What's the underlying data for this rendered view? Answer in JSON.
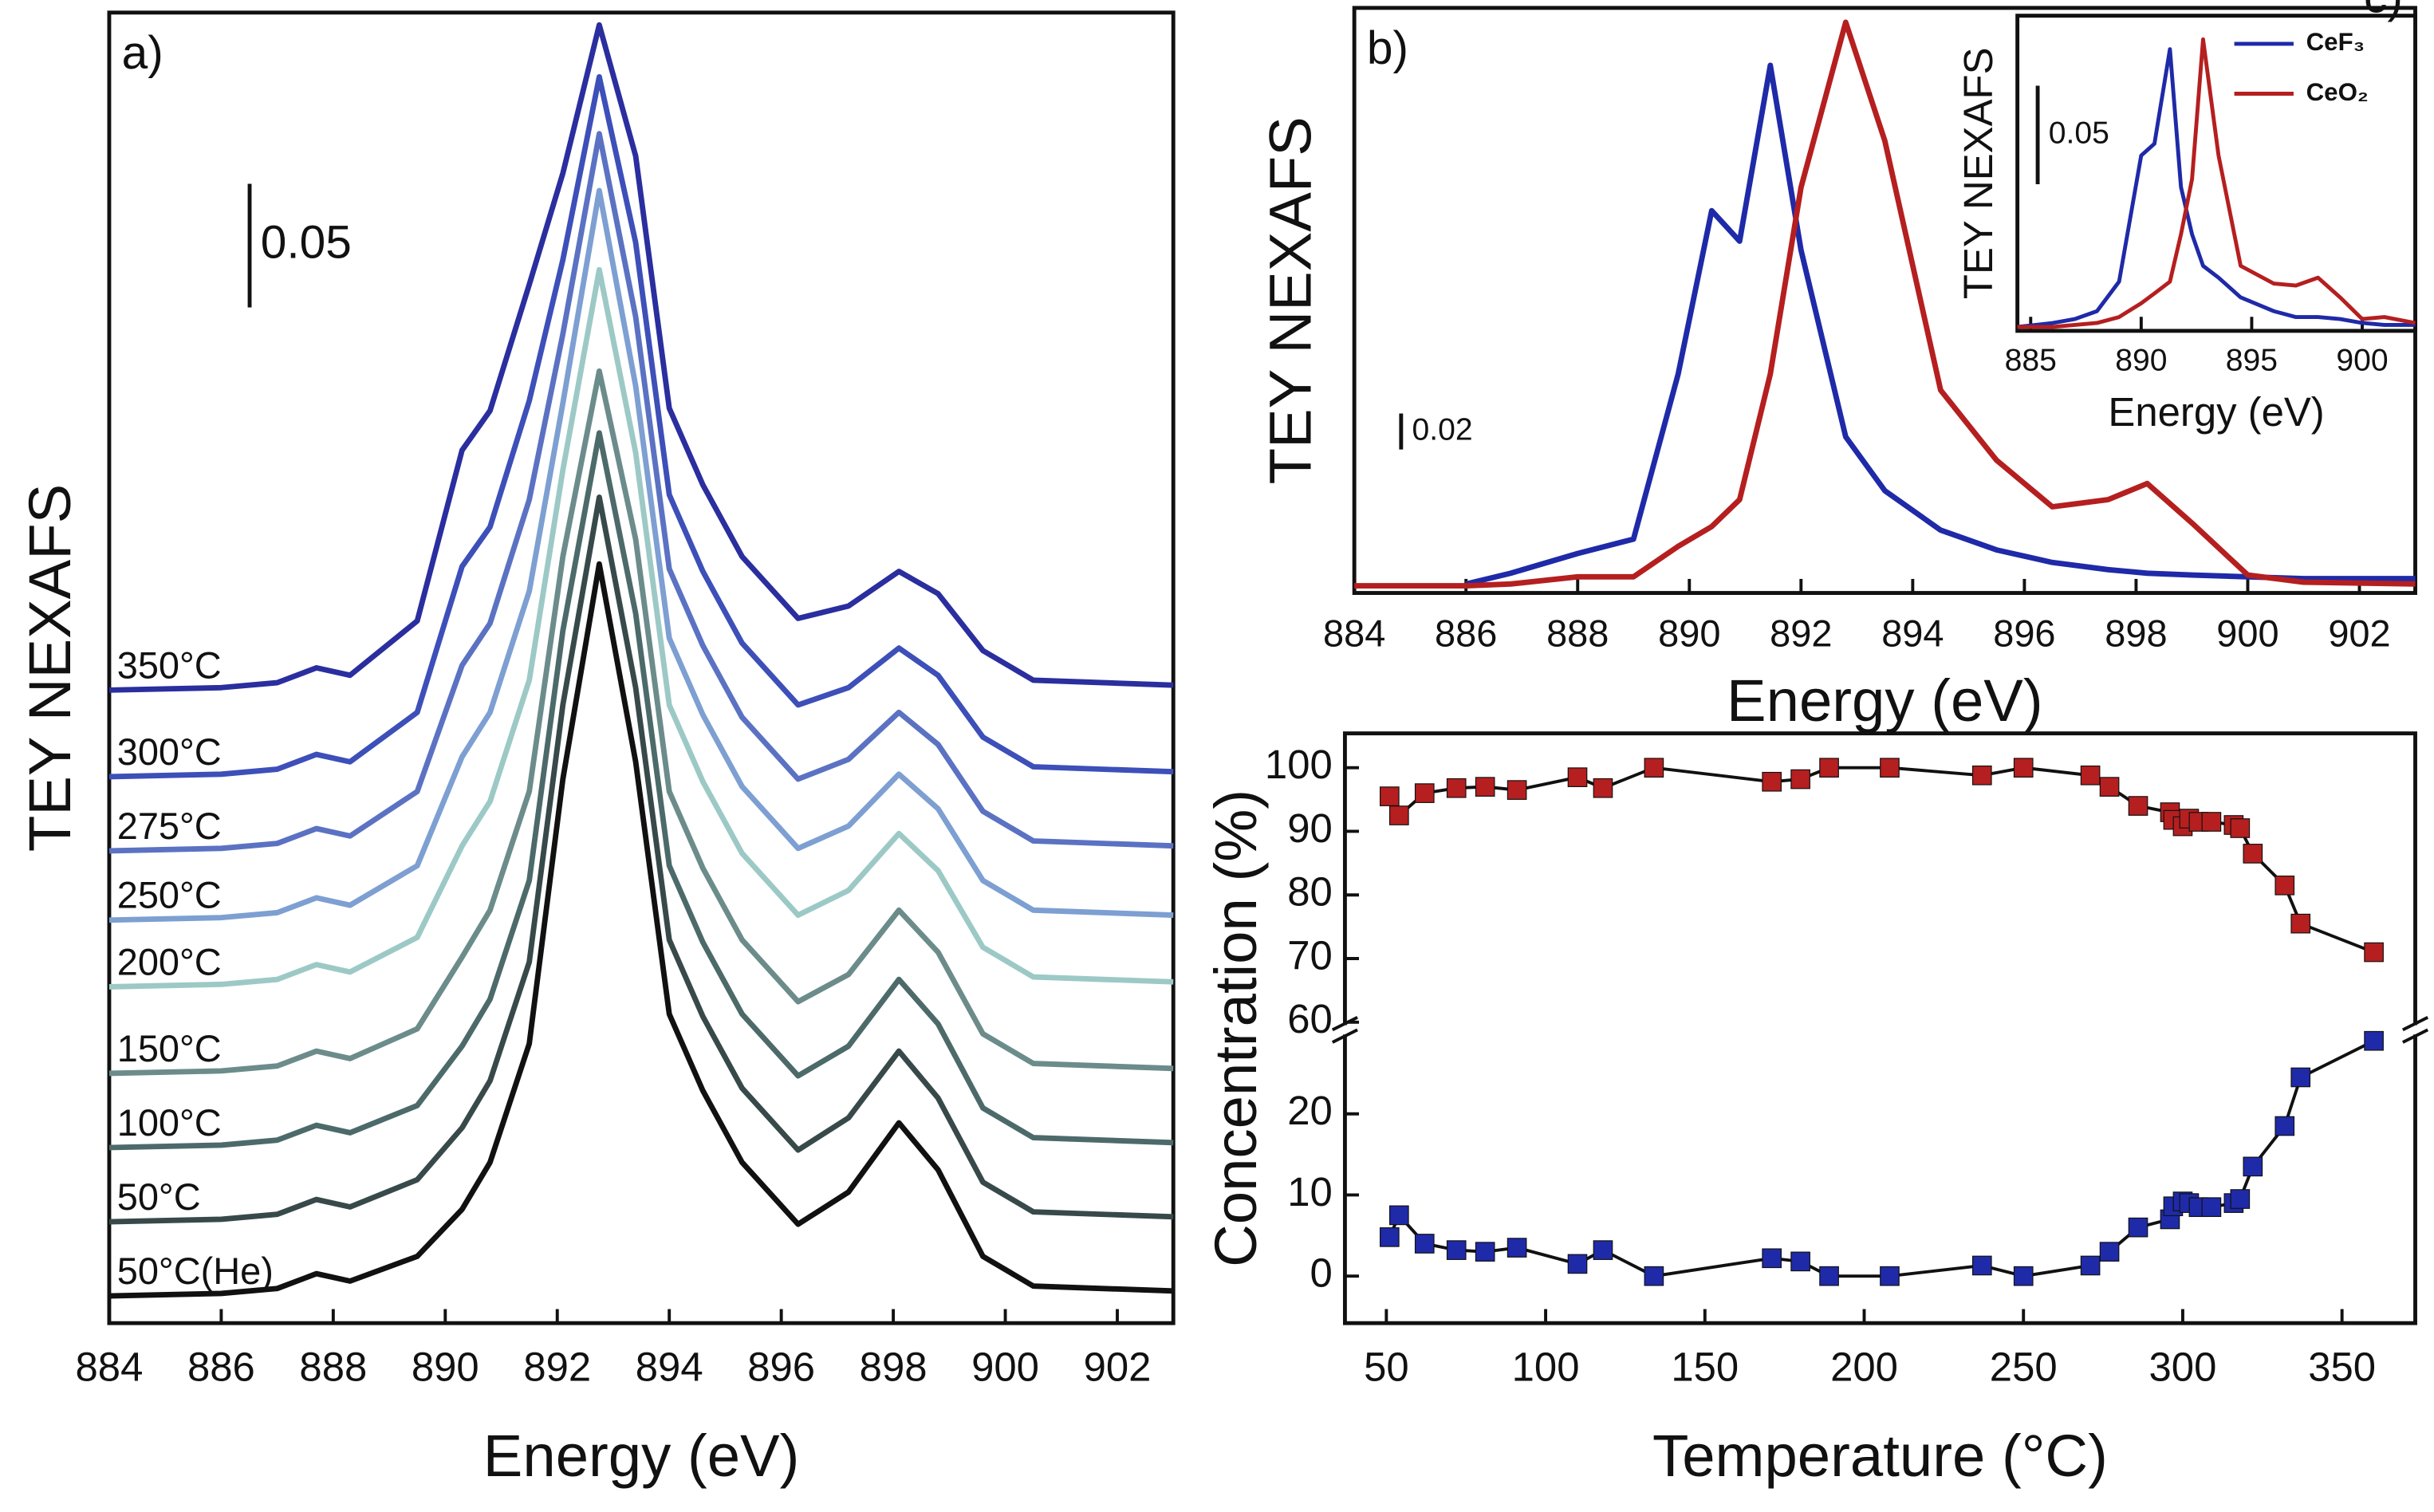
{
  "chart_data": [
    {
      "type": "line",
      "panel_label": "a)",
      "xlabel": "Energy (eV)",
      "ylabel": "TEY NEXAFS",
      "scale_bar": {
        "value": 0.05,
        "label": "0.05"
      },
      "xlim": [
        884,
        903
      ],
      "ylim": [
        0,
        0.53
      ],
      "xticks": [
        884,
        886,
        888,
        890,
        892,
        894,
        896,
        898,
        900,
        902
      ],
      "x": [
        884,
        886,
        887,
        887.7,
        888.3,
        889.5,
        890.3,
        890.8,
        891.5,
        892.1,
        892.75,
        893.4,
        894,
        894.6,
        895.3,
        896.3,
        897.2,
        898.1,
        898.8,
        899.6,
        900.5,
        903
      ],
      "series": [
        {
          "name": "50°C(He)",
          "color": "#111111",
          "values": [
            0.011,
            0.012,
            0.014,
            0.02,
            0.017,
            0.027,
            0.046,
            0.065,
            0.113,
            0.22,
            0.307,
            0.227,
            0.125,
            0.094,
            0.065,
            0.04,
            0.053,
            0.081,
            0.062,
            0.027,
            0.015,
            0.013
          ]
        },
        {
          "name": "50°C",
          "color": "#38494a",
          "values": [
            0.041,
            0.042,
            0.044,
            0.05,
            0.047,
            0.058,
            0.079,
            0.098,
            0.146,
            0.25,
            0.334,
            0.257,
            0.155,
            0.124,
            0.095,
            0.07,
            0.083,
            0.11,
            0.091,
            0.057,
            0.045,
            0.043
          ]
        },
        {
          "name": "100°C",
          "color": "#4d6a6a",
          "values": [
            0.071,
            0.072,
            0.074,
            0.08,
            0.077,
            0.088,
            0.112,
            0.131,
            0.179,
            0.28,
            0.36,
            0.287,
            0.185,
            0.154,
            0.125,
            0.1,
            0.112,
            0.139,
            0.121,
            0.087,
            0.075,
            0.073
          ]
        },
        {
          "name": "150°C",
          "color": "#6b8c8b",
          "values": [
            0.101,
            0.102,
            0.104,
            0.11,
            0.107,
            0.119,
            0.148,
            0.167,
            0.215,
            0.31,
            0.385,
            0.317,
            0.215,
            0.184,
            0.155,
            0.13,
            0.141,
            0.167,
            0.15,
            0.117,
            0.105,
            0.103
          ]
        },
        {
          "name": "200°C",
          "color": "#9cc9c6",
          "values": [
            0.136,
            0.137,
            0.139,
            0.145,
            0.142,
            0.156,
            0.193,
            0.211,
            0.26,
            0.345,
            0.426,
            0.352,
            0.25,
            0.219,
            0.19,
            0.165,
            0.175,
            0.198,
            0.183,
            0.152,
            0.14,
            0.138
          ]
        },
        {
          "name": "250°C",
          "color": "#7d9fd2",
          "values": [
            0.163,
            0.164,
            0.166,
            0.172,
            0.169,
            0.185,
            0.229,
            0.247,
            0.296,
            0.372,
            0.458,
            0.379,
            0.277,
            0.246,
            0.217,
            0.192,
            0.201,
            0.222,
            0.208,
            0.179,
            0.167,
            0.165
          ]
        },
        {
          "name": "275°C",
          "color": "#5b72c3",
          "values": [
            0.191,
            0.192,
            0.194,
            0.2,
            0.197,
            0.215,
            0.266,
            0.283,
            0.333,
            0.4,
            0.481,
            0.407,
            0.305,
            0.274,
            0.245,
            0.22,
            0.228,
            0.247,
            0.234,
            0.207,
            0.195,
            0.193
          ]
        },
        {
          "name": "300°C",
          "color": "#3d4fb8",
          "values": [
            0.221,
            0.222,
            0.224,
            0.23,
            0.227,
            0.247,
            0.306,
            0.322,
            0.373,
            0.43,
            0.504,
            0.437,
            0.335,
            0.304,
            0.275,
            0.25,
            0.257,
            0.273,
            0.262,
            0.237,
            0.225,
            0.223
          ]
        },
        {
          "name": "350°C",
          "color": "#2a2e9e",
          "values": [
            0.256,
            0.257,
            0.259,
            0.265,
            0.262,
            0.284,
            0.353,
            0.369,
            0.42,
            0.465,
            0.525,
            0.472,
            0.37,
            0.339,
            0.31,
            0.285,
            0.29,
            0.304,
            0.295,
            0.272,
            0.26,
            0.258
          ]
        }
      ]
    },
    {
      "type": "line",
      "panel_label": "b)",
      "xlabel": "Energy (eV)",
      "ylabel": "TEY NEXAFS",
      "scale_bar": {
        "value": 0.02,
        "label": "0.02"
      },
      "xlim": [
        884,
        903
      ],
      "ylim": [
        0,
        0.326
      ],
      "xticks": [
        884,
        886,
        888,
        890,
        892,
        894,
        896,
        898,
        900,
        902
      ],
      "x": [
        884,
        886,
        886.8,
        888,
        889,
        889.8,
        890.4,
        890.9,
        891.45,
        892,
        892.8,
        893.5,
        894.5,
        895.5,
        896.5,
        897.5,
        898.2,
        899,
        900,
        901,
        903
      ],
      "series": [
        {
          "color": "#1f2aa8",
          "values": [
            null,
            0.005,
            0.011,
            0.022,
            0.03,
            0.122,
            0.213,
            0.196,
            0.294,
            0.191,
            0.087,
            0.057,
            0.035,
            0.024,
            0.017,
            0.013,
            0.011,
            0.01,
            0.009,
            0.008,
            0.008
          ]
        },
        {
          "color": "#b51f1f",
          "values": [
            0.004,
            0.004,
            0.005,
            0.009,
            0.009,
            0.026,
            0.037,
            0.052,
            0.122,
            0.226,
            0.318,
            0.252,
            0.113,
            0.074,
            0.048,
            0.052,
            0.061,
            0.039,
            0.01,
            0.006,
            0.005
          ]
        }
      ]
    },
    {
      "type": "line",
      "xlabel": "Energy (eV)",
      "ylabel": "TEY NEXAFS",
      "scale_bar": {
        "value": 0.05,
        "label": "0.05"
      },
      "xlim": [
        884.4,
        902.4
      ],
      "ylim": [
        0,
        0.16
      ],
      "xticks": [
        885,
        890,
        895,
        900
      ],
      "x": [
        884.4,
        886,
        887,
        888,
        889,
        890,
        890.6,
        891.3,
        891.8,
        892.3,
        892.8,
        893.5,
        894.5,
        896,
        897,
        898,
        899,
        900,
        901,
        902.4
      ],
      "series": [
        {
          "name": "CeF₃",
          "color": "#1f2aa8",
          "values": [
            0.002,
            0.004,
            0.006,
            0.01,
            0.025,
            0.089,
            0.095,
            0.143,
            0.073,
            0.049,
            0.033,
            0.027,
            0.017,
            0.01,
            0.007,
            0.007,
            0.006,
            0.004,
            0.003,
            0.003
          ]
        },
        {
          "name": "CeO₂",
          "color": "#b51f1f",
          "values": [
            0.002,
            0.002,
            0.003,
            0.004,
            0.007,
            0.014,
            0.019,
            0.025,
            0.049,
            0.077,
            0.148,
            0.089,
            0.033,
            0.024,
            0.023,
            0.027,
            0.017,
            0.006,
            0.007,
            0.004
          ]
        }
      ]
    },
    {
      "type": "scatter",
      "panel_label": "c)",
      "xlabel": "Temperature (°C)",
      "ylabel": "Concentration (%)",
      "xlim": [
        37,
        373
      ],
      "xticks": [
        50,
        100,
        150,
        200,
        250,
        300,
        350
      ],
      "ylim": [
        -5.8,
        29.4
      ],
      "yticks": [
        0,
        10,
        20
      ],
      "y2lim": [
        58.8,
        105.4
      ],
      "y2ticks": [
        60,
        70,
        80,
        90,
        100
      ],
      "x": [
        51,
        54,
        62,
        72,
        81,
        91,
        110,
        118,
        134,
        171,
        180,
        189,
        208,
        237,
        250,
        271,
        277,
        286,
        296,
        297,
        300,
        302,
        305,
        309,
        316,
        318,
        322,
        332,
        337,
        360
      ],
      "series": [
        {
          "color": "#b51f1f",
          "axis": "y2",
          "values": [
            95.5,
            92.5,
            96,
            96.8,
            97,
            96.5,
            98.5,
            96.8,
            100,
            97.8,
            98.2,
            100,
            100,
            98.8,
            100,
            98.8,
            97,
            94,
            93,
            91.8,
            90.8,
            92,
            91.5,
            91.5,
            91,
            90.5,
            86.5,
            81.5,
            75.5,
            71
          ]
        },
        {
          "color": "#1f2aa8",
          "values": [
            4.8,
            7.5,
            4,
            3.2,
            3,
            3.5,
            1.5,
            3.2,
            0,
            2.2,
            1.8,
            0,
            0,
            1.3,
            0,
            1.3,
            3,
            6,
            7,
            8.6,
            9.2,
            9,
            8.5,
            8.5,
            9,
            9.5,
            13.5,
            18.5,
            24.5,
            29
          ]
        }
      ]
    }
  ]
}
